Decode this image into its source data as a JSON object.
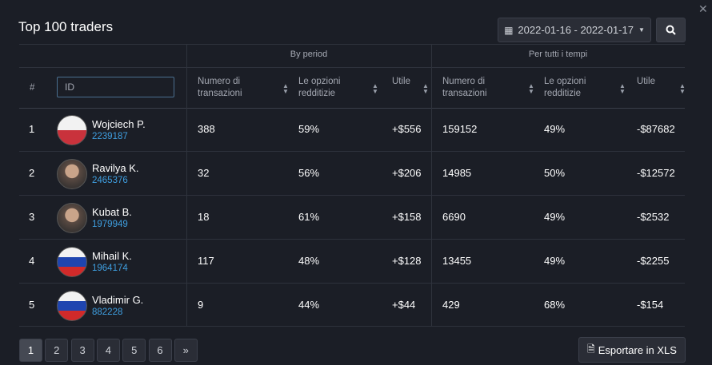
{
  "header": {
    "title": "Top 100 traders",
    "date_range": "2022-01-16 - 2022-01-17"
  },
  "table": {
    "groups": [
      "By period",
      "Per tutti i tempi"
    ],
    "columns": [
      "#",
      "ID",
      "Numero di transazioni",
      "Le opzioni redditizie",
      "Utile",
      "Numero di transazioni",
      "Le opzioni redditizie",
      "Utile"
    ],
    "rows": [
      {
        "rank": "1",
        "name": "Wojciech P.",
        "id": "2239187",
        "cells": [
          "388",
          "59%",
          "+$556",
          "159152",
          "49%",
          "-$87682"
        ]
      },
      {
        "rank": "2",
        "name": "Ravilya K.",
        "id": "2465376",
        "cells": [
          "32",
          "56%",
          "+$206",
          "14985",
          "50%",
          "-$12572"
        ]
      },
      {
        "rank": "3",
        "name": "Kubat B.",
        "id": "1979949",
        "cells": [
          "18",
          "61%",
          "+$158",
          "6690",
          "49%",
          "-$2532"
        ]
      },
      {
        "rank": "4",
        "name": "Mihail K.",
        "id": "1964174",
        "cells": [
          "117",
          "48%",
          "+$128",
          "13455",
          "49%",
          "-$2255"
        ]
      },
      {
        "rank": "5",
        "name": "Vladimir G.",
        "id": "882228",
        "cells": [
          "9",
          "44%",
          "+$44",
          "429",
          "68%",
          "-$154"
        ]
      }
    ]
  },
  "pagination": {
    "pages": [
      "1",
      "2",
      "3",
      "4",
      "5",
      "6",
      "»"
    ]
  },
  "export": "Esportare in XLS"
}
